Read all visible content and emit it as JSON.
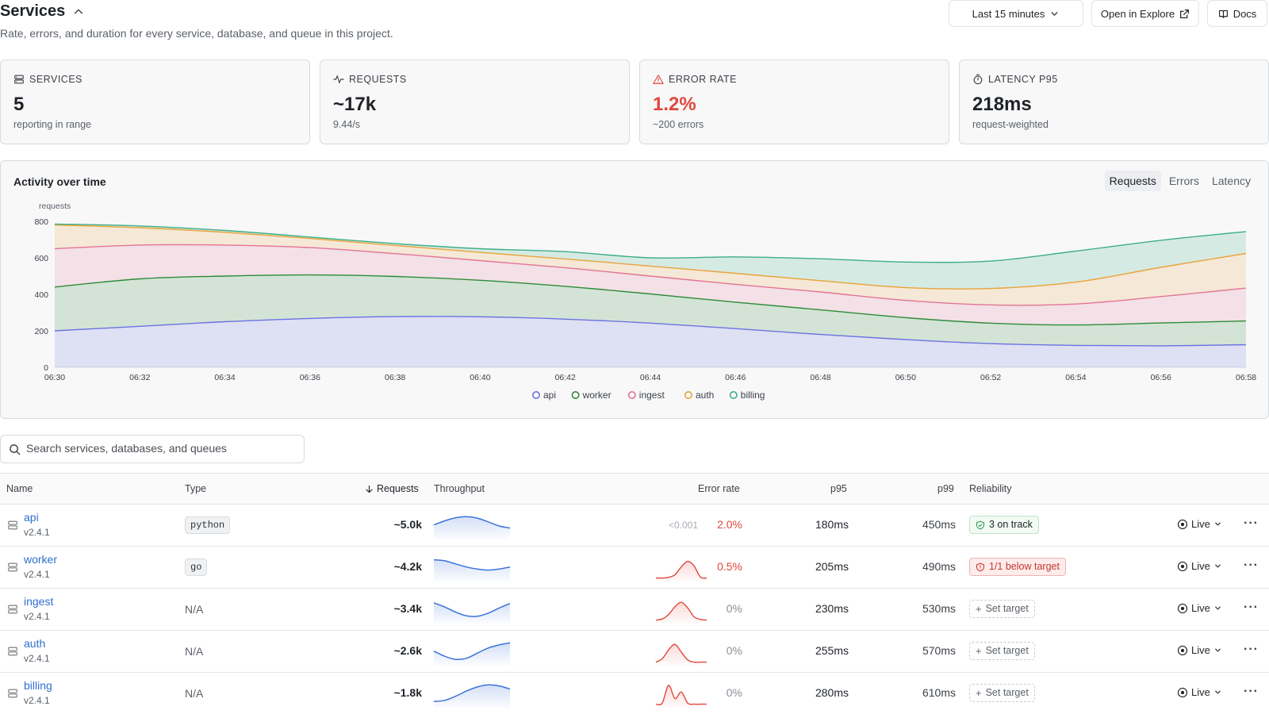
{
  "header": {
    "title": "Services",
    "subtitle": "Rate, errors, and duration for every service, database, and queue in this project.",
    "time_range": "Last 15 minutes",
    "explore_label": "Open in Explore",
    "docs_label": "Docs"
  },
  "cards": [
    {
      "label": "SERVICES",
      "value": "5",
      "sub": "reporting in range",
      "icon": "server-icon"
    },
    {
      "label": "REQUESTS",
      "value": "~17k",
      "sub": "9.44/s",
      "icon": "activity-icon"
    },
    {
      "label": "ERROR RATE",
      "value": "1.2%",
      "sub": "~200 errors",
      "icon": "warning-icon",
      "color": "#e0473e"
    },
    {
      "label": "LATENCY P95",
      "value": "218ms",
      "sub": "request-weighted",
      "icon": "timer-icon"
    }
  ],
  "activity": {
    "title": "Activity over time",
    "tabs": [
      "Requests",
      "Errors",
      "Latency"
    ],
    "active_tab": "Requests"
  },
  "chart_data": {
    "type": "area",
    "stacked": true,
    "ylabel": "requests",
    "ylim": [
      0,
      800
    ],
    "yticks": [
      0,
      200,
      400,
      600,
      800
    ],
    "x": [
      "06:30",
      "06:32",
      "06:34",
      "06:36",
      "06:38",
      "06:40",
      "06:42",
      "06:44",
      "06:46",
      "06:48",
      "06:50",
      "06:52",
      "06:54",
      "06:56",
      "06:58"
    ],
    "series": [
      {
        "name": "api",
        "color": "#6b73e0",
        "values": [
          200,
          225,
          250,
          268,
          278,
          277,
          264,
          242,
          212,
          180,
          152,
          130,
          120,
          118,
          124
        ]
      },
      {
        "name": "worker",
        "color": "#2e8b3a",
        "values": [
          240,
          260,
          250,
          238,
          220,
          200,
          180,
          160,
          145,
          135,
          120,
          112,
          112,
          125,
          130
        ]
      },
      {
        "name": "ingest",
        "color": "#e27494",
        "values": [
          210,
          185,
          170,
          150,
          125,
          108,
          102,
          98,
          98,
          98,
          95,
          100,
          115,
          145,
          180
        ]
      },
      {
        "name": "auth",
        "color": "#e8a33a",
        "values": [
          130,
          95,
          70,
          50,
          45,
          45,
          48,
          55,
          60,
          62,
          70,
          90,
          120,
          160,
          190
        ]
      },
      {
        "name": "billing",
        "color": "#3fae86",
        "values": [
          5,
          10,
          10,
          8,
          10,
          20,
          40,
          45,
          90,
          120,
          140,
          150,
          170,
          148,
          120
        ]
      }
    ],
    "legend": "bottom",
    "grid": false
  },
  "search": {
    "placeholder": "Search services, databases, and queues"
  },
  "table": {
    "columns": {
      "name": "Name",
      "type": "Type",
      "requests": "Requests",
      "throughput": "Throughput",
      "error_rate": "Error rate",
      "p95": "p95",
      "p99": "p99",
      "reliability": "Reliability"
    },
    "rows": [
      {
        "name": "api",
        "version": "v2.4.1",
        "type": "python",
        "requests": "~5.0k",
        "err_faint": "<0.001",
        "error_rate": "2.0%",
        "p95": "180ms",
        "p99": "450ms",
        "reliability": "3 on track",
        "rel_kind": "ok",
        "live": "Live",
        "throughput": [
          0.55,
          0.75,
          0.9,
          0.95,
          0.88,
          0.7,
          0.5,
          0.4
        ],
        "errors": []
      },
      {
        "name": "worker",
        "version": "v2.4.1",
        "type": "go",
        "requests": "~4.2k",
        "err_faint": "",
        "error_rate": "0.5%",
        "p95": "205ms",
        "p99": "490ms",
        "reliability": "1/1 below target",
        "rel_kind": "bad",
        "live": "Live",
        "throughput": [
          0.9,
          0.85,
          0.7,
          0.55,
          0.45,
          0.4,
          0.45,
          0.55
        ],
        "errors": [
          0.05,
          0.05,
          0.08,
          0.2,
          0.55,
          0.8,
          0.6,
          0.1,
          0.05
        ]
      },
      {
        "name": "ingest",
        "version": "v2.4.1",
        "type": "N/A",
        "requests": "~3.4k",
        "err_faint": "",
        "error_rate": "0%",
        "p95": "230ms",
        "p99": "530ms",
        "reliability": "Set target",
        "rel_kind": "set",
        "live": "Live",
        "throughput": [
          0.85,
          0.65,
          0.4,
          0.22,
          0.2,
          0.35,
          0.6,
          0.82
        ],
        "errors": [
          0.05,
          0.1,
          0.3,
          0.65,
          0.85,
          0.6,
          0.2,
          0.08,
          0.05
        ]
      },
      {
        "name": "auth",
        "version": "v2.4.1",
        "type": "N/A",
        "requests": "~2.6k",
        "err_faint": "",
        "error_rate": "0%",
        "p95": "255ms",
        "p99": "570ms",
        "reliability": "Set target",
        "rel_kind": "set",
        "live": "Live",
        "throughput": [
          0.55,
          0.3,
          0.15,
          0.2,
          0.45,
          0.7,
          0.85,
          0.95
        ],
        "errors": [
          0.05,
          0.2,
          0.6,
          0.85,
          0.5,
          0.15,
          0.05,
          0.05,
          0.05
        ]
      },
      {
        "name": "billing",
        "version": "v2.4.1",
        "type": "N/A",
        "requests": "~1.8k",
        "err_faint": "",
        "error_rate": "0%",
        "p95": "280ms",
        "p99": "610ms",
        "reliability": "Set target",
        "rel_kind": "set",
        "live": "Live",
        "throughput": [
          0.15,
          0.2,
          0.4,
          0.65,
          0.85,
          0.95,
          0.9,
          0.75
        ],
        "errors": [
          0.05,
          0.1,
          0.9,
          0.3,
          0.6,
          0.1,
          0.05,
          0.05,
          0.05
        ]
      }
    ]
  }
}
